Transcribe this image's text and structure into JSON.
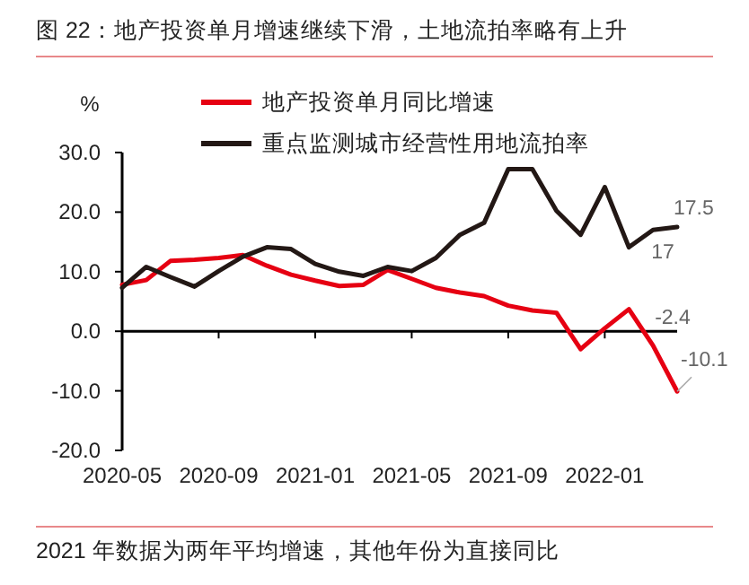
{
  "chart_data": {
    "type": "line",
    "title": "图 22：地产投资单月增速继续下滑，土地流拍率略有上升",
    "ylabel": "%",
    "x": [
      "2020-05",
      "2020-06",
      "2020-07",
      "2020-08",
      "2020-09",
      "2020-10",
      "2020-11",
      "2020-12",
      "2021-01",
      "2021-02",
      "2021-03",
      "2021-04",
      "2021-05",
      "2021-06",
      "2021-07",
      "2021-08",
      "2021-09",
      "2021-10",
      "2021-11",
      "2021-12",
      "2022-01",
      "2022-02",
      "2022-03",
      "2022-04"
    ],
    "series": [
      {
        "name": "地产投资单月同比增速",
        "color": "#e60012",
        "values": [
          7.8,
          8.6,
          11.8,
          12.0,
          12.3,
          12.8,
          11.0,
          9.5,
          8.5,
          7.6,
          7.8,
          10.3,
          8.8,
          7.3,
          6.5,
          5.9,
          4.3,
          3.5,
          3.1,
          -3.0,
          0.5,
          3.7,
          -2.4,
          -10.1
        ]
      },
      {
        "name": "重点监测城市经营性用地流拍率",
        "color": "#231815",
        "values": [
          7.3,
          10.8,
          9.1,
          7.5,
          10.1,
          12.5,
          14.1,
          13.8,
          11.3,
          10.0,
          9.3,
          10.8,
          10.1,
          12.3,
          16.2,
          18.2,
          27.2,
          27.2,
          20.2,
          16.2,
          24.2,
          14.1,
          17,
          17.5
        ]
      }
    ],
    "xlim": [
      "2020-05",
      "2022-04"
    ],
    "xticks": [
      "2020-05",
      "2020-09",
      "2021-01",
      "2021-05",
      "2021-09",
      "2022-01"
    ],
    "ylim": [
      -20,
      30
    ],
    "yticks": [
      {
        "value": -20,
        "label": "-20.0"
      },
      {
        "value": -10,
        "label": "-10.0"
      },
      {
        "value": 0,
        "label": "0.0"
      },
      {
        "value": 10,
        "label": "10.0"
      },
      {
        "value": 20,
        "label": "20.0"
      },
      {
        "value": 30,
        "label": "30.0"
      }
    ],
    "legend": "top",
    "marker": "none",
    "line_style": "solid",
    "annotations": [
      {
        "text": "-2.4",
        "x": "2022-03",
        "y": -2.4
      },
      {
        "text": "-10.1",
        "x": "2022-04",
        "y": -10.1
      },
      {
        "text": "17",
        "x": "2022-03",
        "y": 17
      },
      {
        "text": "17.5",
        "x": "2022-04",
        "y": 17.5
      },
      "2021 年数据为两年平均增速，其他年份为直接同比"
    ]
  }
}
